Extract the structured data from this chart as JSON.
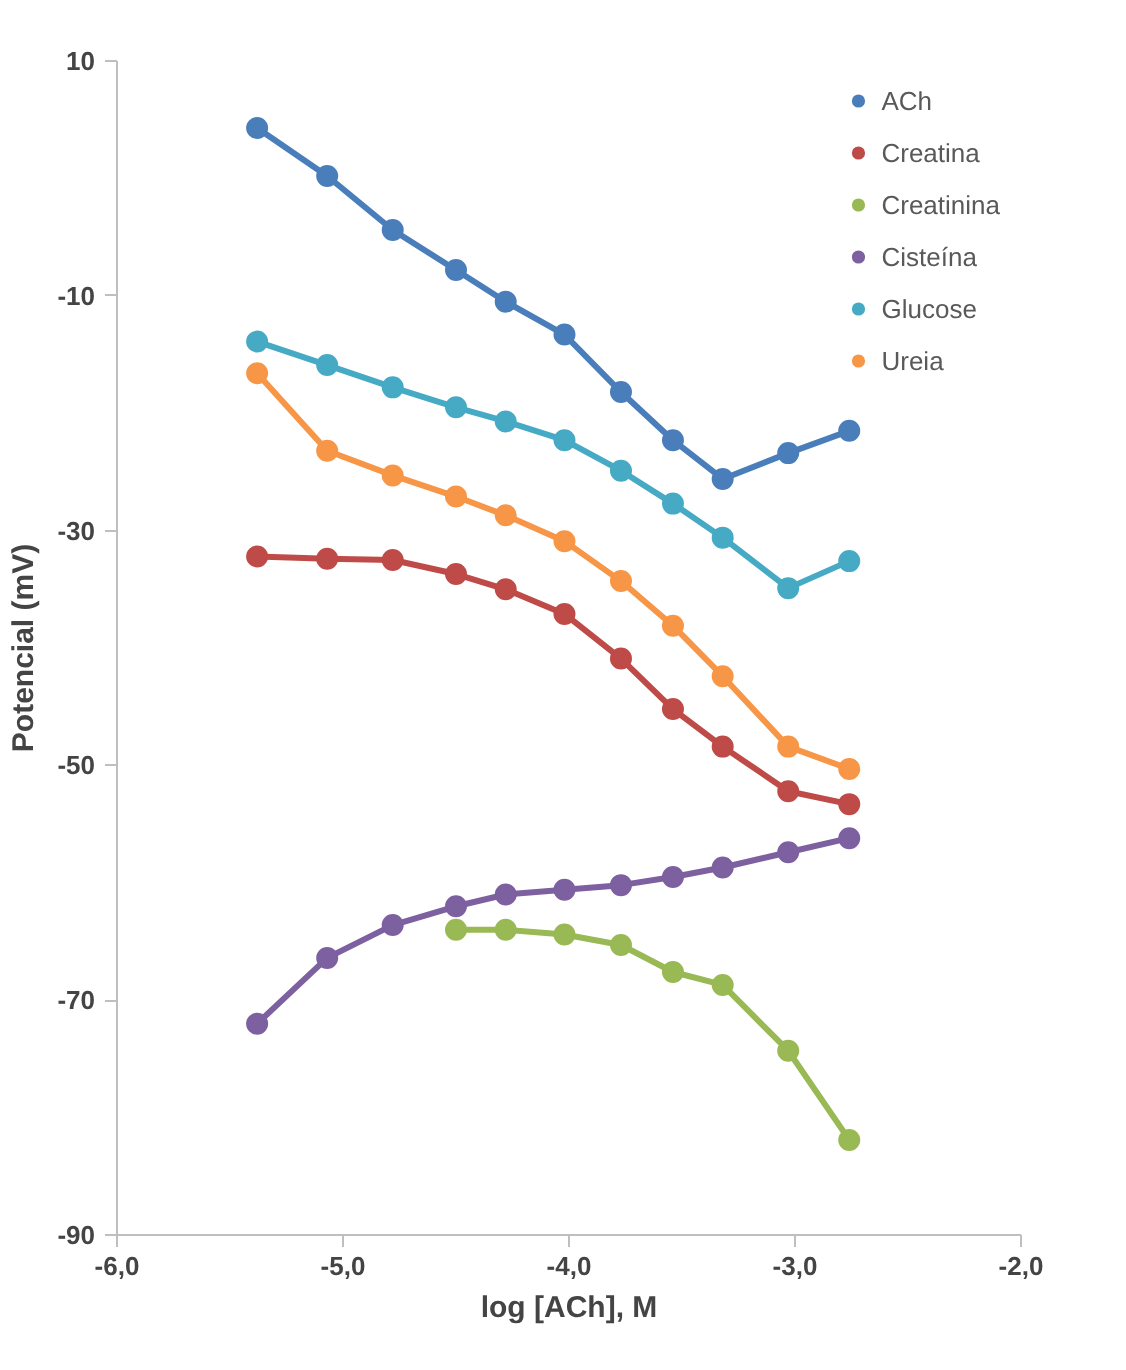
{
  "chart_data": {
    "type": "line",
    "xlabel": "log [ACh], M",
    "ylabel": "Potencial (mV)",
    "x": [
      -5.38,
      -5.07,
      -4.78,
      -4.5,
      -4.28,
      -4.02,
      -3.77,
      -3.54,
      -3.32,
      -3.03,
      -2.76
    ],
    "series": [
      {
        "name": "ACh",
        "color": "#4a7ebb",
        "values": [
          4.3,
          0.2,
          -4.4,
          -7.8,
          -10.5,
          -13.3,
          -18.2,
          -22.3,
          -25.6,
          -23.4,
          -21.5
        ]
      },
      {
        "name": "Creatina",
        "color": "#be4b48",
        "values": [
          -32.2,
          -32.4,
          -32.5,
          -33.7,
          -35.0,
          -37.1,
          -40.9,
          -45.2,
          -48.4,
          -52.2,
          -53.3
        ]
      },
      {
        "name": "Creatinina",
        "color": "#98b954",
        "values": [
          null,
          null,
          null,
          -64.0,
          -64.0,
          -64.4,
          -65.3,
          -67.6,
          -68.7,
          -74.3,
          -81.9
        ]
      },
      {
        "name": "Cisteína",
        "color": "#7d60a0",
        "values": [
          -72.0,
          -66.4,
          -63.6,
          -62.0,
          -61.0,
          -60.6,
          -60.2,
          -59.5,
          -58.7,
          -57.4,
          -56.2
        ]
      },
      {
        "name": "Glucose",
        "color": "#46aac5",
        "values": [
          -13.9,
          -15.9,
          -17.8,
          -19.5,
          -20.7,
          -22.3,
          -24.9,
          -27.7,
          -30.6,
          -34.9,
          -32.6
        ]
      },
      {
        "name": "Ureia",
        "color": "#f79646",
        "values": [
          -16.6,
          -23.2,
          -25.3,
          -27.1,
          -28.7,
          -30.9,
          -34.3,
          -38.1,
          -42.4,
          -48.4,
          -50.3
        ]
      }
    ],
    "xlim": [
      -6,
      -2
    ],
    "xticks": [
      {
        "value": -6,
        "label": "-6,0"
      },
      {
        "value": -5,
        "label": "-5,0"
      },
      {
        "value": -4,
        "label": "-4,0"
      },
      {
        "value": -3,
        "label": "-3,0"
      },
      {
        "value": -2,
        "label": "-2,0"
      }
    ],
    "ylim": [
      -90,
      10
    ],
    "yticks": [
      -90,
      -70,
      -50,
      -30,
      -10,
      10
    ],
    "grid": false,
    "legend": "top right",
    "marker": "circle",
    "line_style": "solid"
  }
}
